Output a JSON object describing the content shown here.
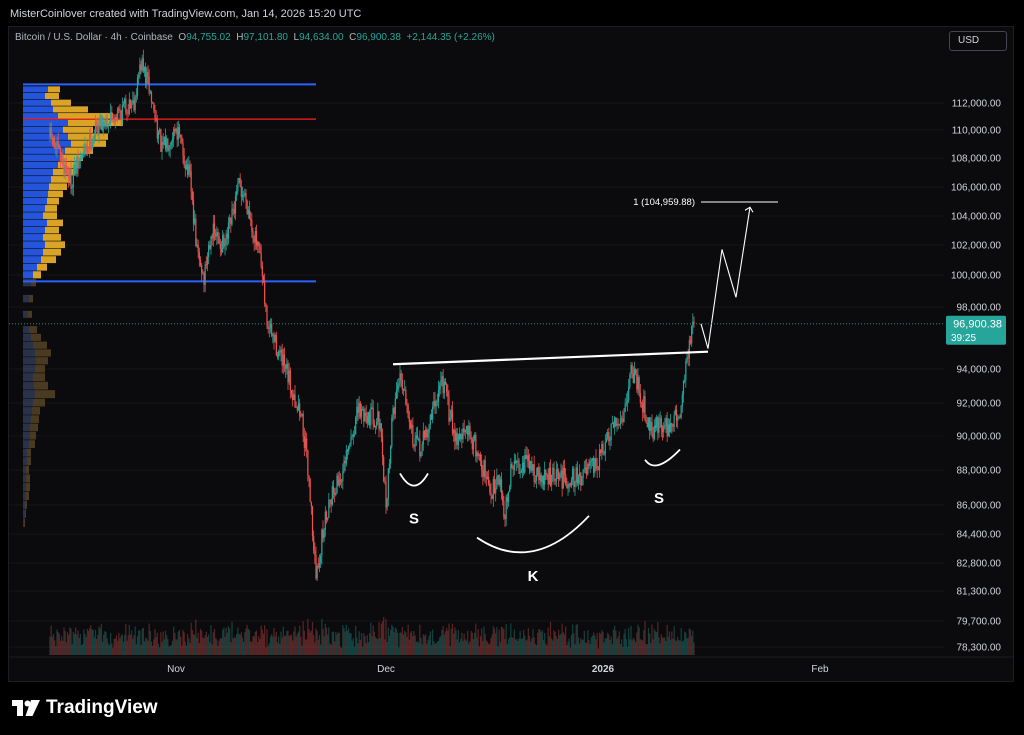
{
  "credit": "MisterCoinlover created with TradingView.com, Jan 14, 2026 15:20 UTC",
  "legend": {
    "symbol": "Bitcoin / U.S. Dollar · 4h · Coinbase",
    "open_label": "O",
    "open": "94,755.02",
    "high_label": "H",
    "high": "97,101.80",
    "low_label": "L",
    "low": "94,634.00",
    "close_label": "C",
    "close": "96,900.38",
    "change": "+2,144.35 (+2.26%)"
  },
  "currency_button": "USD",
  "brand": "TradingView",
  "colors": {
    "up": "#26a69a",
    "down": "#ef5350",
    "background": "#0b0b0d",
    "vp_blue": "#2962ff",
    "vp_orange": "#f0b429",
    "poc_line": "#ff1f1f",
    "value_area_line": "#2962ff"
  },
  "chart_data": {
    "type": "candlestick",
    "symbol": "Bitcoin / U.S. Dollar",
    "interval": "4h",
    "exchange": "Coinbase",
    "price_axis": {
      "scale": "log",
      "ticks": [
        "112,000.00",
        "110,000.00",
        "108,000.00",
        "106,000.00",
        "104,000.00",
        "102,000.00",
        "100,000.00",
        "98,000.00",
        "94,000.00",
        "92,000.00",
        "90,000.00",
        "88,000.00",
        "86,000.00",
        "84,400.00",
        "82,800.00",
        "81,300.00",
        "79,700.00",
        "78,300.00"
      ],
      "tick_values": [
        112000,
        110000,
        108000,
        106000,
        104000,
        102000,
        100000,
        98000,
        94000,
        92000,
        90000,
        88000,
        86000,
        84400,
        82800,
        81300,
        79700,
        78300
      ]
    },
    "time_axis": {
      "labels": [
        "Nov",
        "Dec",
        "2026",
        "Feb"
      ],
      "label_dates": [
        "2025-11-01",
        "2025-12-01",
        "2026-01-01",
        "2026-02-01"
      ]
    },
    "last_price_label": "96,900.38",
    "last_price": 96900.38,
    "countdown_label": "39:25",
    "price_path": [
      {
        "date": "2025-10-14",
        "price": 109500
      },
      {
        "date": "2025-10-17",
        "price": 106500
      },
      {
        "date": "2025-10-19",
        "price": 108500
      },
      {
        "date": "2025-10-21",
        "price": 110500
      },
      {
        "date": "2025-10-23",
        "price": 111000
      },
      {
        "date": "2025-10-26",
        "price": 112200
      },
      {
        "date": "2025-10-27",
        "price": 115000
      },
      {
        "date": "2025-10-28",
        "price": 113500
      },
      {
        "date": "2025-10-30",
        "price": 108500
      },
      {
        "date": "2025-11-01",
        "price": 110300
      },
      {
        "date": "2025-11-03",
        "price": 106500
      },
      {
        "date": "2025-11-04",
        "price": 101500
      },
      {
        "date": "2025-11-05",
        "price": 99800
      },
      {
        "date": "2025-11-06",
        "price": 103000
      },
      {
        "date": "2025-11-08",
        "price": 101800
      },
      {
        "date": "2025-11-10",
        "price": 106000
      },
      {
        "date": "2025-11-11",
        "price": 105200
      },
      {
        "date": "2025-11-13",
        "price": 101000
      },
      {
        "date": "2025-11-14",
        "price": 97000
      },
      {
        "date": "2025-11-15",
        "price": 95800
      },
      {
        "date": "2025-11-17",
        "price": 93500
      },
      {
        "date": "2025-11-19",
        "price": 91000
      },
      {
        "date": "2025-11-20",
        "price": 87500
      },
      {
        "date": "2025-11-21",
        "price": 82000
      },
      {
        "date": "2025-11-22",
        "price": 84500
      },
      {
        "date": "2025-11-23",
        "price": 86500
      },
      {
        "date": "2025-11-25",
        "price": 88000
      },
      {
        "date": "2025-11-27",
        "price": 91500
      },
      {
        "date": "2025-11-29",
        "price": 91200
      },
      {
        "date": "2025-11-30",
        "price": 91000
      },
      {
        "date": "2025-12-01",
        "price": 86000
      },
      {
        "date": "2025-12-02",
        "price": 91500
      },
      {
        "date": "2025-12-03",
        "price": 93800
      },
      {
        "date": "2025-12-04",
        "price": 92200
      },
      {
        "date": "2025-12-05",
        "price": 89500
      },
      {
        "date": "2025-12-06",
        "price": 89300
      },
      {
        "date": "2025-12-07",
        "price": 90500
      },
      {
        "date": "2025-12-09",
        "price": 93500
      },
      {
        "date": "2025-12-10",
        "price": 91500
      },
      {
        "date": "2025-12-11",
        "price": 90000
      },
      {
        "date": "2025-12-13",
        "price": 90200
      },
      {
        "date": "2025-12-15",
        "price": 88000
      },
      {
        "date": "2025-12-16",
        "price": 86500
      },
      {
        "date": "2025-12-17",
        "price": 88000
      },
      {
        "date": "2025-12-18",
        "price": 85500
      },
      {
        "date": "2025-12-19",
        "price": 88200
      },
      {
        "date": "2025-12-21",
        "price": 88500
      },
      {
        "date": "2025-12-23",
        "price": 87500
      },
      {
        "date": "2025-12-25",
        "price": 87600
      },
      {
        "date": "2025-12-27",
        "price": 87500
      },
      {
        "date": "2025-12-29",
        "price": 87700
      },
      {
        "date": "2025-12-31",
        "price": 88200
      },
      {
        "date": "2026-01-02",
        "price": 90000
      },
      {
        "date": "2026-01-04",
        "price": 91500
      },
      {
        "date": "2026-01-05",
        "price": 94000
      },
      {
        "date": "2026-01-06",
        "price": 93200
      },
      {
        "date": "2026-01-07",
        "price": 91500
      },
      {
        "date": "2026-01-08",
        "price": 90300
      },
      {
        "date": "2026-01-09",
        "price": 90800
      },
      {
        "date": "2026-01-10",
        "price": 90500
      },
      {
        "date": "2026-01-11",
        "price": 90800
      },
      {
        "date": "2026-01-12",
        "price": 91500
      },
      {
        "date": "2026-01-13",
        "price": 94800
      },
      {
        "date": "2026-01-14",
        "price": 96900
      }
    ],
    "annotations": {
      "neckline": [
        {
          "date": "2025-12-02",
          "price": 94300
        },
        {
          "date": "2026-01-16",
          "price": 95100
        }
      ],
      "projection_path": [
        {
          "date": "2026-01-15",
          "price": 96900
        },
        {
          "date": "2026-01-16",
          "price": 95300
        },
        {
          "date": "2026-01-18",
          "price": 101700
        },
        {
          "date": "2026-01-20",
          "price": 98600
        },
        {
          "date": "2026-01-22",
          "price": 104600
        }
      ],
      "target": {
        "label": "1 (104,959.88)",
        "price": 104959.88,
        "date_from": "2026-01-15",
        "date_to": "2026-01-22"
      },
      "arc_labels": [
        "S",
        "K",
        "S"
      ],
      "left_shoulder_arc": [
        {
          "date": "2025-12-03",
          "price": 87800
        },
        {
          "date": "2025-12-05",
          "price": 87100
        },
        {
          "date": "2025-12-07",
          "price": 87800
        }
      ],
      "head_arc": [
        {
          "date": "2025-12-14",
          "price": 84200
        },
        {
          "date": "2025-12-22",
          "price": 83450
        },
        {
          "date": "2025-12-30",
          "price": 85400
        }
      ],
      "right_shoulder_arc": [
        {
          "date": "2026-01-07",
          "price": 88600
        },
        {
          "date": "2026-01-09",
          "price": 88300
        },
        {
          "date": "2026-01-12",
          "price": 89200
        }
      ]
    },
    "volume_profile": {
      "poc_price": 110800,
      "value_area_high": 113400,
      "value_area_low": 99600,
      "bins": [
        {
          "price": 113000,
          "up": 0.25,
          "down": 0.12
        },
        {
          "price": 112500,
          "up": 0.22,
          "down": 0.14
        },
        {
          "price": 112000,
          "up": 0.28,
          "down": 0.2
        },
        {
          "price": 111500,
          "up": 0.3,
          "down": 0.35
        },
        {
          "price": 111000,
          "up": 0.35,
          "down": 0.55
        },
        {
          "price": 110500,
          "up": 0.45,
          "down": 0.55
        },
        {
          "price": 110000,
          "up": 0.4,
          "down": 0.3
        },
        {
          "price": 109500,
          "up": 0.45,
          "down": 0.4
        },
        {
          "price": 109000,
          "up": 0.48,
          "down": 0.35
        },
        {
          "price": 108500,
          "up": 0.42,
          "down": 0.28
        },
        {
          "price": 108000,
          "up": 0.38,
          "down": 0.22
        },
        {
          "price": 107500,
          "up": 0.35,
          "down": 0.2
        },
        {
          "price": 107000,
          "up": 0.3,
          "down": 0.22
        },
        {
          "price": 106500,
          "up": 0.28,
          "down": 0.2
        },
        {
          "price": 106000,
          "up": 0.26,
          "down": 0.18
        },
        {
          "price": 105500,
          "up": 0.25,
          "down": 0.15
        },
        {
          "price": 105000,
          "up": 0.24,
          "down": 0.12
        },
        {
          "price": 104500,
          "up": 0.22,
          "down": 0.12
        },
        {
          "price": 104000,
          "up": 0.2,
          "down": 0.14
        },
        {
          "price": 103500,
          "up": 0.24,
          "down": 0.16
        },
        {
          "price": 103000,
          "up": 0.22,
          "down": 0.14
        },
        {
          "price": 102500,
          "up": 0.2,
          "down": 0.18
        },
        {
          "price": 102000,
          "up": 0.22,
          "down": 0.2
        },
        {
          "price": 101500,
          "up": 0.2,
          "down": 0.18
        },
        {
          "price": 101000,
          "up": 0.18,
          "down": 0.15
        },
        {
          "price": 100500,
          "up": 0.14,
          "down": 0.1
        },
        {
          "price": 100000,
          "up": 0.1,
          "down": 0.08
        },
        {
          "price": 99500,
          "up": 0.08,
          "down": 0.05
        },
        {
          "price": 98500,
          "up": 0.06,
          "down": 0.04
        },
        {
          "price": 97500,
          "up": 0.05,
          "down": 0.04
        },
        {
          "price": 96500,
          "up": 0.06,
          "down": 0.08
        },
        {
          "price": 96000,
          "up": 0.08,
          "down": 0.1
        },
        {
          "price": 95500,
          "up": 0.1,
          "down": 0.14
        },
        {
          "price": 95000,
          "up": 0.12,
          "down": 0.16
        },
        {
          "price": 94500,
          "up": 0.13,
          "down": 0.12
        },
        {
          "price": 94000,
          "up": 0.12,
          "down": 0.1
        },
        {
          "price": 93500,
          "up": 0.1,
          "down": 0.12
        },
        {
          "price": 93000,
          "up": 0.11,
          "down": 0.14
        },
        {
          "price": 92500,
          "up": 0.12,
          "down": 0.2
        },
        {
          "price": 92000,
          "up": 0.1,
          "down": 0.12
        },
        {
          "price": 91500,
          "up": 0.09,
          "down": 0.08
        },
        {
          "price": 91000,
          "up": 0.08,
          "down": 0.08
        },
        {
          "price": 90500,
          "up": 0.07,
          "down": 0.08
        },
        {
          "price": 90000,
          "up": 0.07,
          "down": 0.06
        },
        {
          "price": 89500,
          "up": 0.06,
          "down": 0.06
        },
        {
          "price": 89000,
          "up": 0.04,
          "down": 0.04
        },
        {
          "price": 88500,
          "up": 0.04,
          "down": 0.04
        },
        {
          "price": 88000,
          "up": 0.03,
          "down": 0.03
        },
        {
          "price": 87500,
          "up": 0.03,
          "down": 0.04
        },
        {
          "price": 87000,
          "up": 0.03,
          "down": 0.04
        },
        {
          "price": 86500,
          "up": 0.03,
          "down": 0.03
        },
        {
          "price": 86000,
          "up": 0.02,
          "down": 0.02
        },
        {
          "price": 85500,
          "up": 0.02,
          "down": 0.01
        },
        {
          "price": 85000,
          "up": 0.01,
          "down": 0.01
        }
      ]
    }
  }
}
